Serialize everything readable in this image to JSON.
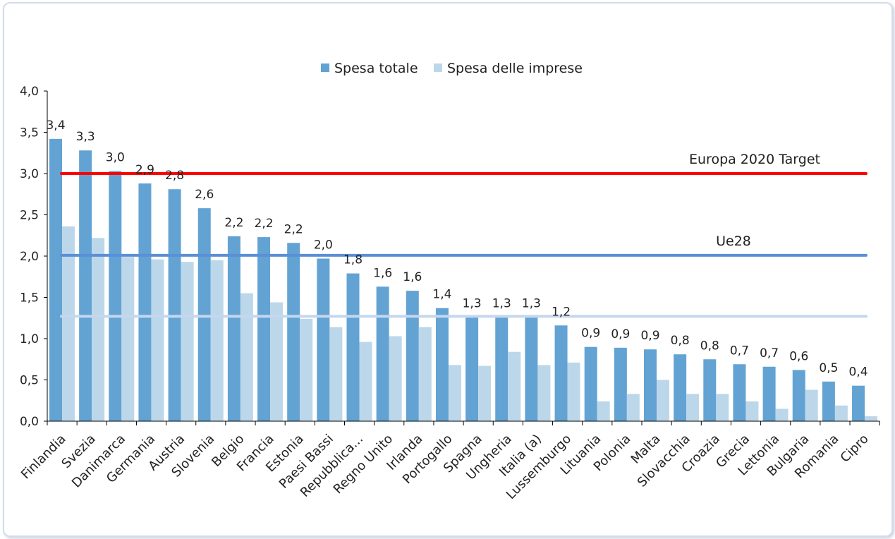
{
  "chart_data": {
    "type": "bar",
    "categories": [
      "Finlandia",
      "Svezia",
      "Danimarca",
      "Germania",
      "Austria",
      "Slovenia",
      "Belgio",
      "Francia",
      "Estonia",
      "Paesi Bassi",
      "Repubblica...",
      "Regno Unito",
      "Irlanda",
      "Portogallo",
      "Spagna",
      "Ungheria",
      "Italia (a)",
      "Lussemburgo",
      "Lituania",
      "Polonia",
      "Malta",
      "Slovacchia",
      "Croazia",
      "Grecia",
      "Lettonia",
      "Bulgaria",
      "Romania",
      "Cipro"
    ],
    "series": [
      {
        "name": "Spesa totale",
        "color": "#62a3d3",
        "values": [
          3.42,
          3.28,
          3.03,
          2.88,
          2.81,
          2.58,
          2.24,
          2.23,
          2.16,
          1.97,
          1.79,
          1.63,
          1.58,
          1.37,
          1.26,
          1.26,
          1.26,
          1.16,
          0.9,
          0.89,
          0.87,
          0.81,
          0.75,
          0.69,
          0.66,
          0.62,
          0.48,
          0.43
        ],
        "data_labels": [
          "3,4",
          "3,3",
          "3,0",
          "2,9",
          "2,8",
          "2,6",
          "2,2",
          "2,2",
          "2,2",
          "2,0",
          "1,8",
          "1,6",
          "1,6",
          "1,4",
          "1,3",
          "1,3",
          "1,3",
          "1,2",
          "0,9",
          "0,9",
          "0,9",
          "0,8",
          "0,8",
          "0,7",
          "0,7",
          "0,6",
          "0,5",
          "0,4"
        ]
      },
      {
        "name": "Spesa delle imprese",
        "color": "#bdd7ea",
        "values": [
          2.36,
          2.22,
          1.99,
          1.96,
          1.93,
          1.95,
          1.55,
          1.44,
          1.24,
          1.14,
          0.96,
          1.03,
          1.14,
          0.68,
          0.67,
          0.84,
          0.68,
          0.71,
          0.24,
          0.33,
          0.5,
          0.33,
          0.33,
          0.24,
          0.15,
          0.38,
          0.19,
          0.06
        ]
      }
    ],
    "reference_lines": [
      {
        "label": "Europa 2020 Target",
        "value": 3.0,
        "color": "#ff0000"
      },
      {
        "label": "Ue28",
        "value": 2.01,
        "color": "#5b8fd6"
      },
      {
        "label": "",
        "value": 1.27,
        "color": "#c5d7ee"
      }
    ],
    "y_ticks": [
      "0,0",
      "0,5",
      "1,0",
      "1,5",
      "2,0",
      "2,5",
      "3,0",
      "3,5",
      "4,0"
    ],
    "ylim": [
      0,
      4
    ],
    "grid": false,
    "legend": "top-center"
  }
}
